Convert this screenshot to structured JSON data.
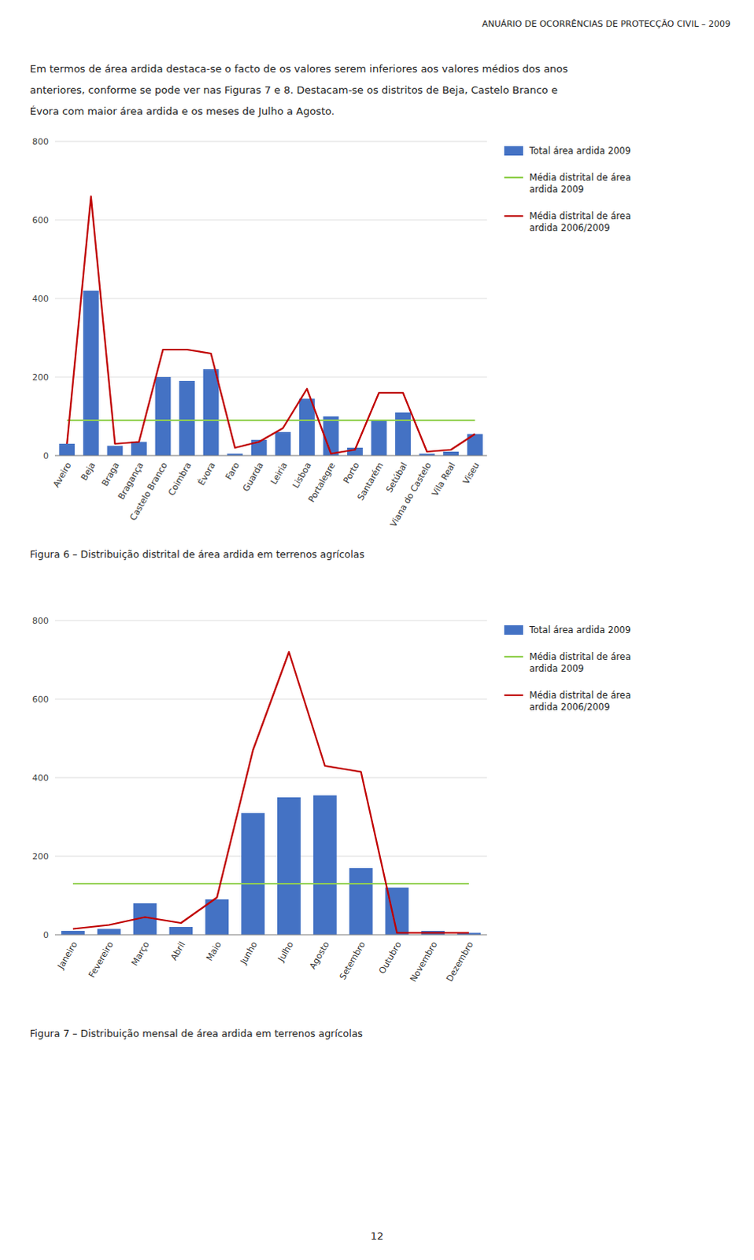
{
  "header": "ANUÁRIO DE OCORRÊNCIAS DE PROTECÇÃO CIVIL – 2009",
  "intro": [
    "Em termos de área ardida destaca-se o facto de os valores serem inferiores aos valores médios dos anos",
    "anteriores, conforme se pode ver nas Figuras 7 e 8. Destacam-se os distritos de Beja, Castelo Branco e",
    "Évora com maior área ardida e os meses de Julho a Agosto."
  ],
  "page_number": "12",
  "chart_data": [
    {
      "type": "bar",
      "title": "Figura 6 – Distribuição distrital de área ardida em terrenos agrícolas",
      "categories": [
        "Aveiro",
        "Beja",
        "Braga",
        "Bragança",
        "Castelo Branco",
        "Coimbra",
        "Évora",
        "Faro",
        "Guarda",
        "Leiria",
        "Lisboa",
        "Portalegre",
        "Porto",
        "Santarém",
        "Setúbal",
        "Viana do Castelo",
        "Vila Real",
        "Viseu"
      ],
      "series": [
        {
          "name": "Total área ardida 2009",
          "type": "bar",
          "color": "#4472C4",
          "values": [
            30,
            420,
            25,
            35,
            200,
            190,
            220,
            5,
            40,
            60,
            145,
            100,
            20,
            90,
            110,
            5,
            10,
            55
          ]
        },
        {
          "name": "Média distrital de área\nardida 2009",
          "type": "line",
          "color": "#92D050",
          "values": [
            90,
            90,
            90,
            90,
            90,
            90,
            90,
            90,
            90,
            90,
            90,
            90,
            90,
            90,
            90,
            90,
            90,
            90
          ]
        },
        {
          "name": "Média distrital de área\nardida 2006/2009",
          "type": "line",
          "color": "#C00000",
          "values": [
            30,
            660,
            30,
            35,
            270,
            270,
            260,
            20,
            35,
            70,
            170,
            5,
            15,
            160,
            160,
            10,
            15,
            55
          ]
        }
      ],
      "ylim": [
        0,
        800
      ],
      "yticks": [
        0,
        200,
        400,
        600,
        800
      ],
      "grid": true,
      "legend": "right"
    },
    {
      "type": "bar",
      "title": "Figura 7 – Distribuição mensal de área ardida em terrenos agrícolas",
      "categories": [
        "Janeiro",
        "Fevereiro",
        "Março",
        "Abril",
        "Maio",
        "Junho",
        "Julho",
        "Agosto",
        "Setembro",
        "Outubro",
        "Novembro",
        "Dezembro"
      ],
      "series": [
        {
          "name": "Total área ardida 2009",
          "type": "bar",
          "color": "#4472C4",
          "values": [
            10,
            15,
            80,
            20,
            90,
            310,
            350,
            355,
            170,
            120,
            10,
            5
          ]
        },
        {
          "name": "Média distrital de área\nardida 2009",
          "type": "line",
          "color": "#92D050",
          "values": [
            130,
            130,
            130,
            130,
            130,
            130,
            130,
            130,
            130,
            130,
            130,
            130
          ]
        },
        {
          "name": "Média distrital de área\nardida 2006/2009",
          "type": "line",
          "color": "#C00000",
          "values": [
            15,
            25,
            45,
            30,
            95,
            470,
            720,
            430,
            415,
            5,
            5,
            5
          ]
        }
      ],
      "ylim": [
        0,
        800
      ],
      "yticks": [
        0,
        200,
        400,
        600,
        800
      ],
      "grid": true,
      "legend": "right"
    }
  ]
}
